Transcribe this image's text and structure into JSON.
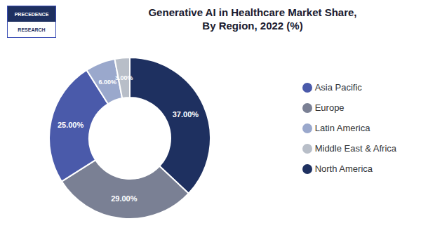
{
  "chart_data": {
    "type": "donut",
    "title": "Generative AI in Healthcare Market Share,\nBy Region, 2022 (%)",
    "categories": [
      "North America",
      "Europe",
      "Asia Pacific",
      "Latin America",
      "Middle East & Africa"
    ],
    "values": [
      37.0,
      29.0,
      25.0,
      6.0,
      3.0
    ],
    "value_labels": [
      "37.00%",
      "29.00%",
      "25.00%",
      "6.00%",
      "3.00%"
    ],
    "colors": [
      "#1e3060",
      "#7a8094",
      "#4a5aaa",
      "#9aa8cc",
      "#b8bec8"
    ],
    "data_labels": true,
    "legend": "right",
    "annotations": [
      "PRECEDENCE",
      "RESEARCH"
    ]
  }
}
